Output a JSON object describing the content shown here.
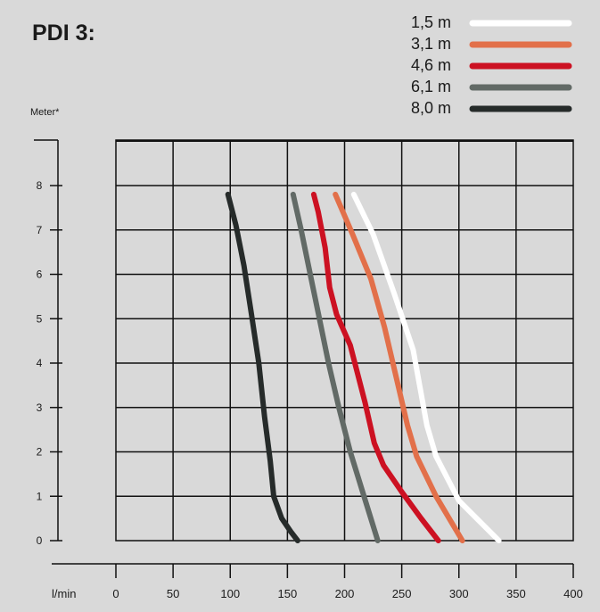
{
  "chart_data": {
    "type": "line",
    "title": "PDI 3:",
    "ylabel": "Meter*",
    "xlabel": "l/min",
    "xlim": [
      0,
      400
    ],
    "ylim": [
      0,
      8
    ],
    "xticks": [
      0,
      50,
      100,
      150,
      200,
      250,
      300,
      350,
      400
    ],
    "yticks": [
      0,
      1,
      2,
      3,
      4,
      5,
      6,
      7,
      8
    ],
    "grid": true,
    "legend_position": "top-right",
    "series": [
      {
        "name": "1,5 m",
        "color": "#ffffff",
        "points": [
          [
            335,
            0
          ],
          [
            300,
            0.9
          ],
          [
            280,
            1.9
          ],
          [
            272,
            2.6
          ],
          [
            260,
            4.3
          ],
          [
            243,
            5.6
          ],
          [
            225,
            6.9
          ],
          [
            208,
            7.8
          ]
        ]
      },
      {
        "name": "3,1 m",
        "color": "#e2704a",
        "points": [
          [
            303,
            0
          ],
          [
            280,
            1
          ],
          [
            263,
            1.9
          ],
          [
            255,
            2.6
          ],
          [
            245,
            3.7
          ],
          [
            235,
            4.8
          ],
          [
            223,
            5.9
          ],
          [
            207,
            6.9
          ],
          [
            192,
            7.8
          ]
        ]
      },
      {
        "name": "4,6 m",
        "color": "#cc1122",
        "points": [
          [
            282,
            0
          ],
          [
            267,
            0.5
          ],
          [
            250,
            1.1
          ],
          [
            234,
            1.7
          ],
          [
            226,
            2.2
          ],
          [
            218,
            3.1
          ],
          [
            205,
            4.4
          ],
          [
            193,
            5.1
          ],
          [
            187,
            5.7
          ],
          [
            183,
            6.6
          ],
          [
            177,
            7.4
          ],
          [
            173,
            7.8
          ]
        ]
      },
      {
        "name": "6,1 m",
        "color": "#626a66",
        "points": [
          [
            229,
            0
          ],
          [
            217,
            1
          ],
          [
            205,
            2
          ],
          [
            195,
            3
          ],
          [
            186,
            4
          ],
          [
            178,
            5
          ],
          [
            170,
            6
          ],
          [
            162,
            7
          ],
          [
            155,
            7.8
          ]
        ]
      },
      {
        "name": "8,0 m",
        "color": "#262b2a",
        "points": [
          [
            159,
            0
          ],
          [
            153,
            0.2
          ],
          [
            145,
            0.5
          ],
          [
            138,
            1
          ],
          [
            135,
            1.8
          ],
          [
            130,
            2.8
          ],
          [
            125,
            4
          ],
          [
            118,
            5.2
          ],
          [
            112,
            6.2
          ],
          [
            105,
            7.1
          ],
          [
            98,
            7.8
          ]
        ]
      }
    ]
  }
}
